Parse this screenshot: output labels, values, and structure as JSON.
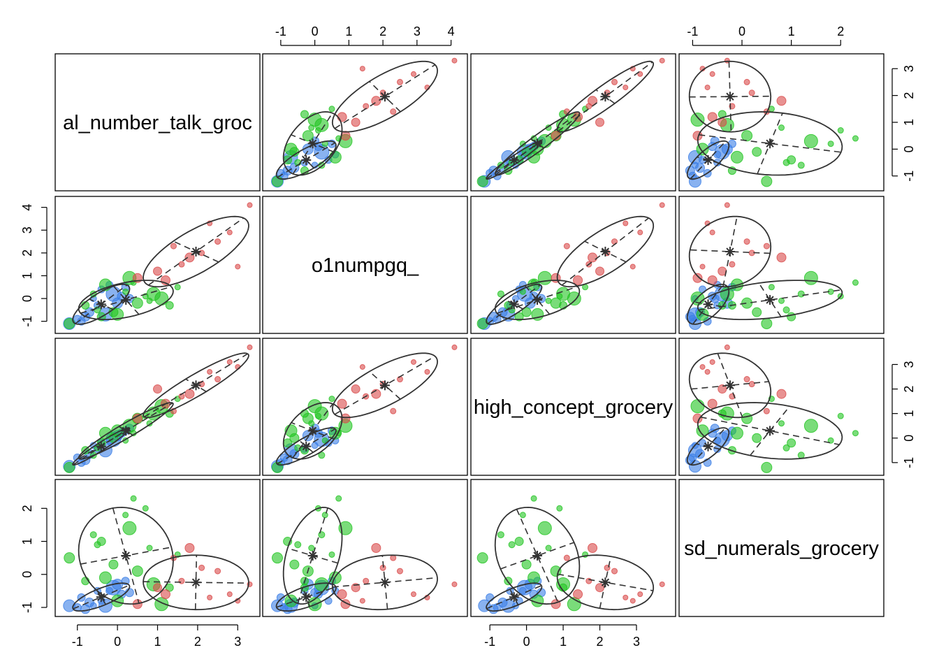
{
  "chart_data": {
    "type": "scatter",
    "variables": [
      "total_number_talk_grocery",
      "o1numpgq_",
      "high_concept_grocery",
      "sd_numerals_grocery"
    ],
    "variable_labels": [
      "al_number_talk_groc",
      "o1numpgq_",
      "high_concept_grocery",
      "sd_numerals_grocery"
    ],
    "limits": [
      [
        -1.4,
        3.4
      ],
      [
        -1.35,
        4.3
      ],
      [
        -1.35,
        3.9
      ],
      [
        -1.15,
        2.75
      ]
    ],
    "ticks": [
      [
        -1,
        0,
        1,
        2,
        3
      ],
      [
        -1,
        0,
        1,
        2,
        3,
        4
      ],
      [
        -1,
        0,
        1,
        2,
        3
      ],
      [
        -1,
        0,
        1,
        2
      ]
    ],
    "axes": {
      "top": [
        {
          "col": 1,
          "var": 1
        },
        {
          "col": 3,
          "var": 3
        }
      ],
      "bottom": [
        {
          "col": 0,
          "var": 0
        },
        {
          "col": 2,
          "var": 2
        }
      ],
      "left": [
        {
          "row": 1,
          "var": 1
        },
        {
          "row": 3,
          "var": 3
        }
      ],
      "right": [
        {
          "row": 0,
          "var": 0
        },
        {
          "row": 2,
          "var": 2
        }
      ]
    },
    "series": [
      {
        "color": "#3b7ee6",
        "points": [
          [
            -1.2,
            -1.1,
            -1.15,
            -0.95
          ],
          [
            -1.0,
            -0.9,
            -0.8,
            -1.0
          ],
          [
            -0.7,
            -0.6,
            -0.65,
            -0.85
          ],
          [
            -0.5,
            -0.3,
            -0.45,
            -0.5
          ],
          [
            -0.3,
            -0.7,
            -0.5,
            -0.95
          ],
          [
            -0.1,
            0.2,
            -0.05,
            -0.4
          ],
          [
            0.1,
            0.1,
            0.2,
            -0.6
          ],
          [
            0.2,
            0.5,
            0.3,
            -0.2
          ],
          [
            -0.4,
            0.4,
            -0.2,
            -0.8
          ],
          [
            -0.8,
            -0.8,
            -0.9,
            -1.05
          ],
          [
            0.0,
            -0.2,
            0.1,
            -0.3
          ],
          [
            -0.6,
            0.0,
            -0.3,
            -0.95
          ],
          [
            0.3,
            0.0,
            0.4,
            -0.55
          ],
          [
            -0.9,
            -1.0,
            -1.0,
            -0.7
          ],
          [
            -0.2,
            0.6,
            -0.1,
            -0.5
          ]
        ],
        "sizes": [
          14,
          8,
          10,
          7,
          16,
          18,
          9,
          8,
          7,
          10,
          12,
          6,
          9,
          8,
          7
        ]
      },
      {
        "color": "#22c422",
        "points": [
          [
            0.9,
            0.2,
            1.0,
            -0.3
          ],
          [
            -0.3,
            0.6,
            0.2,
            -0.1
          ],
          [
            0.5,
            -0.2,
            0.8,
            0.1
          ],
          [
            0.0,
            -0.7,
            0.3,
            -0.8
          ],
          [
            -0.5,
            -0.5,
            -0.4,
            0.9
          ],
          [
            1.1,
            0.0,
            1.3,
            -0.9
          ],
          [
            -1.2,
            -1.1,
            -1.2,
            0.5
          ],
          [
            0.3,
            0.9,
            0.5,
            1.4
          ],
          [
            0.7,
            0.1,
            0.9,
            2.0
          ],
          [
            -0.8,
            -0.3,
            -0.5,
            -0.2
          ],
          [
            0.2,
            0.3,
            -0.1,
            1.8
          ],
          [
            -0.1,
            -0.6,
            0.0,
            0.3
          ],
          [
            1.5,
            0.5,
            1.6,
            0.6
          ],
          [
            -0.6,
            0.2,
            -0.7,
            1.2
          ],
          [
            0.8,
            -0.1,
            0.6,
            0.8
          ],
          [
            1.3,
            -0.3,
            1.0,
            -0.4
          ],
          [
            0.4,
            0.7,
            0.2,
            2.3
          ],
          [
            -0.4,
            -0.8,
            -0.2,
            1.0
          ]
        ],
        "sizes": [
          16,
          14,
          12,
          14,
          6,
          16,
          12,
          16,
          5,
          8,
          5,
          10,
          5,
          6,
          5,
          8,
          5,
          9
        ]
      },
      {
        "color": "#d94a4a",
        "points": [
          [
            1.8,
            1.8,
            1.8,
            0.8
          ],
          [
            1.0,
            1.2,
            2.0,
            -0.4
          ],
          [
            0.5,
            0.9,
            0.8,
            -0.9
          ],
          [
            1.2,
            0.8,
            1.4,
            -0.6
          ],
          [
            2.5,
            2.5,
            2.4,
            0.1
          ],
          [
            3.3,
            4.1,
            3.7,
            -0.3
          ],
          [
            2.8,
            2.9,
            3.1,
            -0.6
          ],
          [
            2.1,
            2.0,
            2.2,
            0.2
          ],
          [
            1.6,
            1.5,
            1.7,
            -0.2
          ],
          [
            3.0,
            1.4,
            2.9,
            -0.8
          ],
          [
            1.4,
            2.3,
            1.1,
            0.5
          ],
          [
            2.3,
            3.3,
            2.7,
            -0.7
          ]
        ],
        "sizes": [
          10,
          9,
          10,
          10,
          5,
          4,
          4,
          5,
          5,
          4,
          5,
          4
        ]
      }
    ]
  }
}
